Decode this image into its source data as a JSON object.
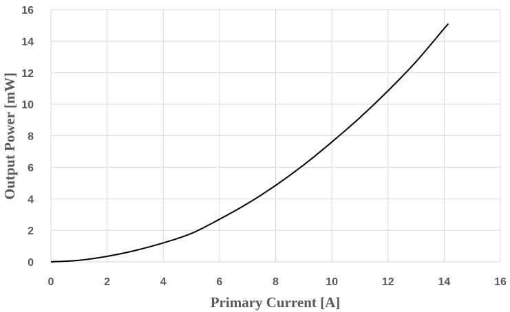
{
  "chart_data": {
    "type": "line",
    "title": "",
    "xlabel": "Primary Current [A]",
    "ylabel": "Output Power [mW]",
    "xlim": [
      0,
      16
    ],
    "ylim": [
      0,
      16
    ],
    "xticks": [
      0,
      2,
      4,
      6,
      8,
      10,
      12,
      14,
      16
    ],
    "yticks": [
      0,
      2,
      4,
      6,
      8,
      10,
      12,
      14,
      16
    ],
    "grid": true,
    "legend": "none",
    "line_color": "#000000",
    "grid_color": "#d9d9d9",
    "tick_label_color": "#595959",
    "series": [
      {
        "x": [
          0,
          1,
          2,
          3,
          4,
          5,
          6,
          7,
          8,
          9,
          10,
          11,
          12,
          13,
          14,
          14.15
        ],
        "y": [
          0,
          0.1,
          0.35,
          0.72,
          1.2,
          1.8,
          2.7,
          3.7,
          4.85,
          6.15,
          7.6,
          9.15,
          10.85,
          12.7,
          14.8,
          15.1
        ]
      }
    ]
  }
}
